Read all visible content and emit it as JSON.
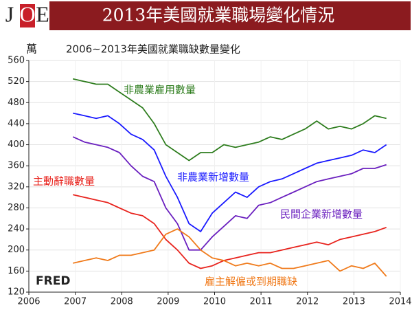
{
  "chart_data": {
    "type": "line",
    "logo": [
      "J",
      "O",
      "E"
    ],
    "title": "2013年美國就業職場變化情況",
    "subtitle": "2006~2013年美國就業職缺數量變化",
    "y_label": "萬",
    "source": "FRED",
    "xlim": [
      2006,
      2014
    ],
    "xticks": [
      2006,
      2007,
      2008,
      2009,
      2010,
      2011,
      2012,
      2013,
      2014
    ],
    "ylim": [
      120,
      560
    ],
    "yticks": [
      120,
      160,
      200,
      240,
      280,
      320,
      360,
      400,
      440,
      480,
      520,
      560
    ],
    "grid": true,
    "x": [
      2006.95,
      2007.2,
      2007.45,
      2007.7,
      2007.95,
      2008.2,
      2008.45,
      2008.7,
      2008.95,
      2009.2,
      2009.45,
      2009.7,
      2009.95,
      2010.2,
      2010.45,
      2010.7,
      2010.95,
      2011.2,
      2011.45,
      2011.7,
      2011.95,
      2012.2,
      2012.45,
      2012.7,
      2012.95,
      2013.2,
      2013.45,
      2013.7
    ],
    "series": [
      {
        "name": "非農業雇用數量",
        "color": "#2e7d1e",
        "values": [
          525,
          520,
          515,
          515,
          500,
          485,
          470,
          440,
          400,
          385,
          370,
          385,
          385,
          400,
          395,
          400,
          405,
          415,
          410,
          420,
          430,
          445,
          430,
          435,
          430,
          440,
          455,
          450
        ]
      },
      {
        "name": "非農業新增數量",
        "color": "#1a1aff",
        "values": [
          460,
          455,
          450,
          455,
          440,
          420,
          410,
          390,
          340,
          300,
          250,
          235,
          270,
          290,
          310,
          300,
          320,
          330,
          335,
          345,
          355,
          365,
          370,
          375,
          380,
          390,
          385,
          400
        ]
      },
      {
        "name": "民間企業新增數量",
        "color": "#6a1fbf",
        "values": [
          415,
          405,
          400,
          395,
          385,
          360,
          340,
          330,
          280,
          250,
          200,
          200,
          225,
          245,
          265,
          260,
          285,
          290,
          300,
          310,
          320,
          330,
          335,
          340,
          345,
          355,
          355,
          362
        ]
      },
      {
        "name": "主動辭職數量",
        "color": "#e8231d",
        "values": [
          305,
          300,
          295,
          290,
          280,
          270,
          265,
          250,
          220,
          200,
          175,
          165,
          170,
          180,
          185,
          190,
          195,
          195,
          200,
          205,
          210,
          215,
          210,
          220,
          225,
          230,
          235,
          243
        ]
      },
      {
        "name": "雇主解僱或到期職缺",
        "color": "#f07a1a",
        "values": [
          175,
          180,
          185,
          180,
          190,
          190,
          195,
          200,
          230,
          240,
          225,
          200,
          185,
          180,
          170,
          175,
          170,
          175,
          165,
          165,
          170,
          175,
          180,
          160,
          170,
          165,
          175,
          150
        ]
      }
    ]
  }
}
